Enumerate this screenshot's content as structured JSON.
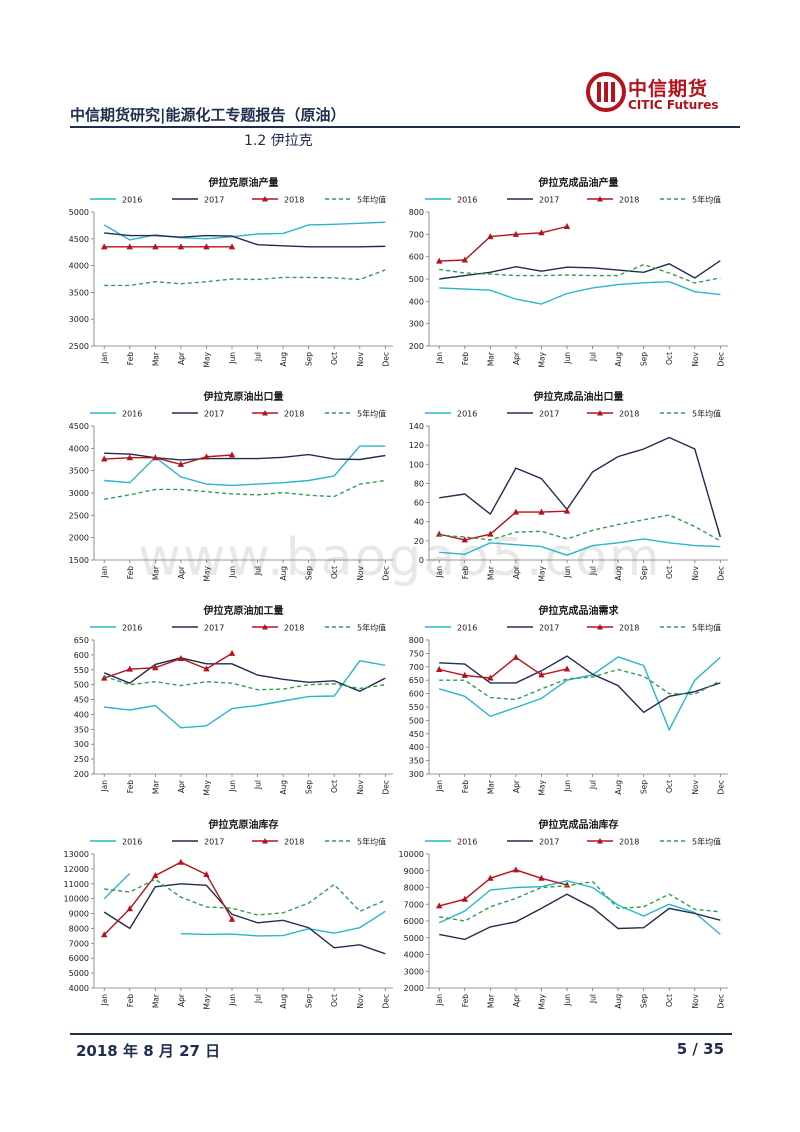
{
  "header": {
    "title": "中信期货研究|能源化工专题报告（原油）",
    "section": "1.2 伊拉克",
    "logo_text": "中信期货",
    "logo_sub": "CITIC Futures",
    "accent": "#b5121b",
    "navy": "#1f2d4e"
  },
  "footer": {
    "date": "2018 年 8 月 27 日",
    "page": "5 / 35"
  },
  "watermark": "www.baogao5.com",
  "legend_labels": [
    "2016",
    "2017",
    "2018",
    "5年均值"
  ],
  "series_colors": {
    "2016": "#29b6cc",
    "2017": "#1f2d4e",
    "2018": "#b5121b",
    "5年均值": "#2e9e4f"
  },
  "chart_data": [
    {
      "type": "line",
      "title": "伊拉克原油产量",
      "categories": [
        "Jan",
        "Feb",
        "Mar",
        "Apr",
        "May",
        "Jun",
        "Jul",
        "Aug",
        "Sep",
        "Oct",
        "Nov",
        "Dec"
      ],
      "ylim": [
        2500,
        5000
      ],
      "yticks": [
        2500,
        3000,
        3500,
        4000,
        4500,
        5000
      ],
      "series": [
        {
          "name": "2016",
          "values": [
            4760,
            4480,
            4570,
            4520,
            4500,
            4540,
            4590,
            4600,
            4760,
            4770,
            4790,
            4810
          ]
        },
        {
          "name": "2017",
          "values": [
            4610,
            4560,
            4560,
            4530,
            4560,
            4550,
            4390,
            4370,
            4350,
            4350,
            4350,
            4360
          ]
        },
        {
          "name": "2018",
          "values": [
            4350,
            4350,
            4350,
            4350,
            4350,
            4350,
            null,
            null,
            null,
            null,
            null,
            null
          ]
        },
        {
          "name": "5年均值",
          "values": [
            3630,
            3630,
            3700,
            3660,
            3700,
            3750,
            3740,
            3780,
            3780,
            3770,
            3740,
            3920
          ]
        }
      ]
    },
    {
      "type": "line",
      "title": "伊拉克成品油产量",
      "categories": [
        "Jan",
        "Feb",
        "Mar",
        "Apr",
        "May",
        "Jun",
        "Jul",
        "Aug",
        "Sep",
        "Oct",
        "Nov",
        "Dec"
      ],
      "ylim": [
        200,
        800
      ],
      "yticks": [
        200,
        300,
        400,
        500,
        600,
        700,
        800
      ],
      "series": [
        {
          "name": "2016",
          "values": [
            460,
            455,
            450,
            410,
            388,
            435,
            460,
            475,
            483,
            488,
            443,
            430
          ]
        },
        {
          "name": "2017",
          "values": [
            500,
            515,
            530,
            555,
            535,
            553,
            550,
            540,
            530,
            568,
            505,
            582
          ]
        },
        {
          "name": "2018",
          "values": [
            580,
            585,
            690,
            700,
            707,
            735,
            null,
            null,
            null,
            null,
            null,
            null
          ]
        },
        {
          "name": "5年均值",
          "values": [
            543,
            527,
            522,
            515,
            515,
            518,
            515,
            515,
            565,
            527,
            482,
            505
          ]
        }
      ]
    },
    {
      "type": "line",
      "title": "伊拉克原油出口量",
      "categories": [
        "Jan",
        "Feb",
        "Mar",
        "Apr",
        "May",
        "Jun",
        "Jul",
        "Aug",
        "Sep",
        "Oct",
        "Nov",
        "Dec"
      ],
      "ylim": [
        1500,
        4500
      ],
      "yticks": [
        1500,
        2000,
        2500,
        3000,
        3500,
        4000,
        4500
      ],
      "series": [
        {
          "name": "2016",
          "values": [
            3280,
            3230,
            3800,
            3360,
            3200,
            3170,
            3200,
            3230,
            3280,
            3380,
            4050,
            4050
          ]
        },
        {
          "name": "2017",
          "values": [
            3890,
            3870,
            3790,
            3740,
            3770,
            3770,
            3770,
            3800,
            3860,
            3760,
            3750,
            3840
          ]
        },
        {
          "name": "2018",
          "values": [
            3760,
            3790,
            3790,
            3640,
            3810,
            3850,
            null,
            null,
            null,
            null,
            null,
            null
          ]
        },
        {
          "name": "5年均值",
          "values": [
            2860,
            2960,
            3080,
            3080,
            3030,
            2980,
            2960,
            3010,
            2950,
            2920,
            3200,
            3280
          ]
        }
      ]
    },
    {
      "type": "line",
      "title": "伊拉克成品油出口量",
      "categories": [
        "Jan",
        "Feb",
        "Mar",
        "Apr",
        "May",
        "Jun",
        "Jul",
        "Aug",
        "Sep",
        "Oct",
        "Nov",
        "Dec"
      ],
      "ylim": [
        0,
        140
      ],
      "yticks": [
        0,
        20,
        40,
        60,
        80,
        100,
        120,
        140
      ],
      "series": [
        {
          "name": "2016",
          "values": [
            8,
            6,
            18,
            16,
            14,
            5,
            15,
            18,
            22,
            18,
            15,
            14
          ]
        },
        {
          "name": "2017",
          "values": [
            65,
            69,
            48,
            96,
            85,
            53,
            92,
            108,
            116,
            128,
            116,
            24
          ]
        },
        {
          "name": "2018",
          "values": [
            27,
            21,
            27,
            50,
            50,
            51,
            null,
            null,
            null,
            null,
            null,
            null
          ]
        },
        {
          "name": "5年均值",
          "values": [
            26,
            24,
            21,
            29,
            30,
            22,
            31,
            37,
            42,
            47,
            35,
            20
          ]
        }
      ]
    },
    {
      "type": "line",
      "title": "伊拉克原油加工量",
      "categories": [
        "Jan",
        "Feb",
        "Mar",
        "Apr",
        "May",
        "Jun",
        "Jul",
        "Aug",
        "Sep",
        "Oct",
        "Nov",
        "Dec"
      ],
      "ylim": [
        200,
        650
      ],
      "yticks": [
        200,
        250,
        300,
        350,
        400,
        450,
        500,
        550,
        600,
        650
      ],
      "series": [
        {
          "name": "2016",
          "values": [
            425,
            415,
            430,
            355,
            362,
            420,
            430,
            445,
            460,
            462,
            580,
            565
          ]
        },
        {
          "name": "2017",
          "values": [
            540,
            505,
            568,
            590,
            570,
            570,
            532,
            518,
            508,
            513,
            478,
            522
          ]
        },
        {
          "name": "2018",
          "values": [
            522,
            552,
            557,
            588,
            553,
            605,
            null,
            null,
            null,
            null,
            null,
            null
          ]
        },
        {
          "name": "5年均值",
          "values": [
            528,
            500,
            510,
            497,
            510,
            505,
            483,
            485,
            500,
            503,
            487,
            500
          ]
        }
      ]
    },
    {
      "type": "line",
      "title": "伊拉克成品油需求",
      "categories": [
        "Jan",
        "Feb",
        "Mar",
        "Apr",
        "May",
        "Jun",
        "Jul",
        "Aug",
        "Sep",
        "Oct",
        "Nov",
        "Dec"
      ],
      "ylim": [
        300,
        800
      ],
      "yticks": [
        300,
        350,
        400,
        450,
        500,
        550,
        600,
        650,
        700,
        750,
        800
      ],
      "series": [
        {
          "name": "2016",
          "values": [
            618,
            590,
            515,
            548,
            582,
            650,
            670,
            737,
            705,
            465,
            650,
            735
          ]
        },
        {
          "name": "2017",
          "values": [
            715,
            710,
            640,
            640,
            685,
            740,
            672,
            630,
            530,
            590,
            607,
            640
          ]
        },
        {
          "name": "2018",
          "values": [
            690,
            668,
            658,
            735,
            670,
            692,
            null,
            null,
            null,
            null,
            null,
            null
          ]
        },
        {
          "name": "5年均值",
          "values": [
            650,
            650,
            585,
            578,
            617,
            655,
            662,
            690,
            665,
            600,
            598,
            648
          ]
        }
      ]
    },
    {
      "type": "line",
      "title": "伊拉克原油库存",
      "categories": [
        "Jan",
        "Feb",
        "Mar",
        "Apr",
        "May",
        "Jun",
        "Jul",
        "Aug",
        "Sep",
        "Oct",
        "Nov",
        "Dec"
      ],
      "ylim": [
        4000,
        13000
      ],
      "yticks": [
        4000,
        5000,
        6000,
        7000,
        8000,
        9000,
        10000,
        11000,
        12000,
        13000
      ],
      "series": [
        {
          "name": "2016",
          "values": [
            10000,
            11700,
            null,
            7650,
            7600,
            7620,
            7500,
            7520,
            7980,
            7680,
            8050,
            9150
          ]
        },
        {
          "name": "2017",
          "values": [
            9100,
            8000,
            10800,
            11000,
            10900,
            8950,
            8380,
            8550,
            8050,
            6700,
            6900,
            6300
          ]
        },
        {
          "name": "2018",
          "values": [
            7580,
            9320,
            11550,
            12450,
            11620,
            8620,
            null,
            null,
            null,
            null,
            null,
            null
          ]
        },
        {
          "name": "5年均值",
          "values": [
            10650,
            10450,
            11300,
            10100,
            9450,
            9350,
            8900,
            9050,
            9700,
            10950,
            9150,
            9900
          ]
        }
      ]
    },
    {
      "type": "line",
      "title": "伊拉克成品油库存",
      "categories": [
        "Jan",
        "Feb",
        "Mar",
        "Apr",
        "May",
        "Jun",
        "Jul",
        "Aug",
        "Sep",
        "Oct",
        "Nov",
        "Dec"
      ],
      "ylim": [
        2000,
        10000
      ],
      "yticks": [
        2000,
        3000,
        4000,
        5000,
        6000,
        7000,
        8000,
        9000,
        10000
      ],
      "series": [
        {
          "name": "2016",
          "values": [
            5900,
            6600,
            7850,
            8000,
            8050,
            8400,
            8000,
            6950,
            6300,
            7000,
            6500,
            5200
          ]
        },
        {
          "name": "2017",
          "values": [
            5200,
            4900,
            5650,
            5950,
            6750,
            7600,
            6800,
            5550,
            5600,
            6750,
            6450,
            6050
          ]
        },
        {
          "name": "2018",
          "values": [
            6900,
            7300,
            8550,
            9050,
            8550,
            8150,
            null,
            null,
            null,
            null,
            null,
            null
          ]
        },
        {
          "name": "5年均值",
          "values": [
            6250,
            6000,
            6850,
            7350,
            8000,
            8100,
            8350,
            6750,
            6850,
            7600,
            6700,
            6550
          ]
        }
      ]
    }
  ]
}
